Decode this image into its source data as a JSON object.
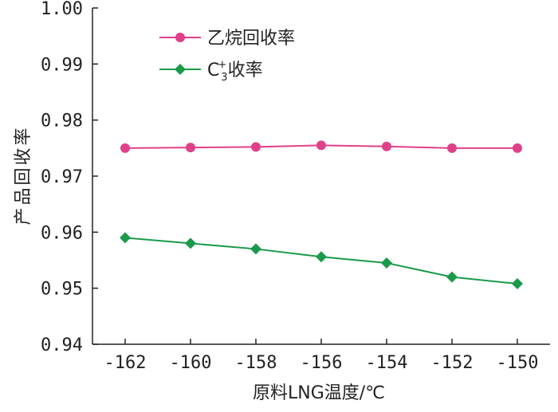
{
  "chart_data": {
    "type": "line",
    "xlabel": "原料LNG温度/℃",
    "ylabel": "产品回收率",
    "x": [
      -162,
      -160,
      -158,
      -156,
      -154,
      -152,
      -150
    ],
    "xlim": [
      -163,
      -149
    ],
    "ylim": [
      0.94,
      1.0
    ],
    "xticks": [
      "-162",
      "-160",
      "-158",
      "-156",
      "-154",
      "-152",
      "-150"
    ],
    "yticks": [
      "1.00",
      "0.99",
      "0.98",
      "0.97",
      "0.96",
      "0.95",
      "0.94"
    ],
    "grid": false,
    "legend_position": "top-left",
    "series": [
      {
        "name": "乙烷回收率",
        "marker": "circle",
        "color": "#e0408a",
        "values": [
          0.975,
          0.9751,
          0.9752,
          0.9755,
          0.9753,
          0.975,
          0.975
        ]
      },
      {
        "name": "C",
        "name_superscript": "+",
        "name_subscript": "3",
        "name_suffix": "收率",
        "marker": "diamond",
        "color": "#1a9a4a",
        "values": [
          0.959,
          0.958,
          0.957,
          0.9556,
          0.9545,
          0.952,
          0.9508
        ]
      }
    ]
  }
}
